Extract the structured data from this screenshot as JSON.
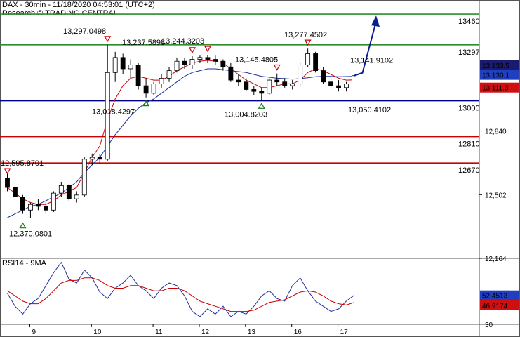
{
  "header": {
    "line1": "DAX - 30min - 11/18/2020 04:53:01 (UTC+2)",
    "line2": "Research © TRADING CENTRAL"
  },
  "colors": {
    "green_level": "#2e8b2e",
    "blue_level": "#00008b",
    "red_level": "#cc0000",
    "ma_fast": "#cc0000",
    "ma_slow": "#1f2fa0",
    "arrow": "#0a1f8f",
    "price_badge": "#1a1a6e",
    "ma_badge_blue": "#1f3fbf",
    "ma_badge_red": "#d01010"
  },
  "chart_data": [
    {
      "type": "candlestick",
      "title": "DAX - 30min - 11/18/2020 04:53:01 (UTC+2)",
      "ylim": [
        12164,
        13520
      ],
      "y_ticks": [
        "12,164",
        "12,502",
        "12,840"
      ],
      "x_ticks": [
        "9",
        "10",
        "11",
        "12",
        "13",
        "16",
        "17"
      ],
      "levels": [
        {
          "value": 13460,
          "label": "13460",
          "color": "green"
        },
        {
          "value": 13297,
          "label": "13297",
          "color": "green"
        },
        {
          "value": 13000,
          "label": "13000",
          "color": "blue"
        },
        {
          "value": 12810,
          "label": "12810",
          "color": "red"
        },
        {
          "value": 12670,
          "label": "12670",
          "color": "red"
        }
      ],
      "price_badges": [
        {
          "value": 13133.5,
          "label": "13,133.5",
          "kind": "price"
        },
        {
          "value": 13130.1,
          "label": "13,130.1",
          "kind": "ma_slow"
        },
        {
          "value": 13111.3,
          "label": "13,111.3",
          "kind": "ma_fast"
        }
      ],
      "annotations": [
        {
          "label": "12,595.8701",
          "value": 12595.8701,
          "marker": "down"
        },
        {
          "label": "12,370.0801",
          "value": 12370.0801,
          "marker": "up"
        },
        {
          "label": "13,297.0498",
          "value": 13297.0498,
          "marker": "down"
        },
        {
          "label": "13,018.4297",
          "value": 13018.4297,
          "marker": "up"
        },
        {
          "label": "13,237.5898",
          "value": 13237.5898,
          "marker": "down"
        },
        {
          "label": "13,244.3203",
          "value": 13244.3203,
          "marker": "down"
        },
        {
          "label": "13,004.8203",
          "value": 13004.8203,
          "marker": "up"
        },
        {
          "label": "13,145.4805",
          "value": 13145.4805,
          "marker": "down"
        },
        {
          "label": "13,277.4502",
          "value": 13277.4502,
          "marker": "down"
        },
        {
          "label": "13,141.9102",
          "value": 13141.9102,
          "marker": "none"
        },
        {
          "label": "13,050.4102",
          "value": 13050.4102,
          "marker": "none"
        }
      ],
      "forecast_arrow_target": 13460,
      "candles_ohlc": [
        [
          12590,
          12620,
          12520,
          12540
        ],
        [
          12540,
          12560,
          12470,
          12490
        ],
        [
          12490,
          12500,
          12400,
          12420
        ],
        [
          12420,
          12460,
          12380,
          12450
        ],
        [
          12450,
          12480,
          12420,
          12440
        ],
        [
          12440,
          12470,
          12400,
          12420
        ],
        [
          12420,
          12520,
          12410,
          12510
        ],
        [
          12510,
          12570,
          12490,
          12550
        ],
        [
          12550,
          12560,
          12470,
          12480
        ],
        [
          12480,
          12520,
          12460,
          12500
        ],
        [
          12500,
          12700,
          12490,
          12690
        ],
        [
          12690,
          12720,
          12660,
          12700
        ],
        [
          12700,
          12720,
          12670,
          12690
        ],
        [
          12690,
          13297,
          12680,
          13150
        ],
        [
          13150,
          13260,
          13100,
          13230
        ],
        [
          13230,
          13250,
          13140,
          13170
        ],
        [
          13170,
          13220,
          13120,
          13190
        ],
        [
          13190,
          13200,
          13060,
          13080
        ],
        [
          13080,
          13120,
          13018,
          13040
        ],
        [
          13040,
          13100,
          13030,
          13090
        ],
        [
          13090,
          13140,
          13070,
          13120
        ],
        [
          13120,
          13180,
          13100,
          13160
        ],
        [
          13160,
          13230,
          13150,
          13210
        ],
        [
          13210,
          13230,
          13170,
          13190
        ],
        [
          13190,
          13237,
          13170,
          13220
        ],
        [
          13220,
          13240,
          13200,
          13230
        ],
        [
          13230,
          13244,
          13200,
          13220
        ],
        [
          13220,
          13240,
          13190,
          13210
        ],
        [
          13210,
          13220,
          13160,
          13180
        ],
        [
          13180,
          13200,
          13100,
          13110
        ],
        [
          13110,
          13140,
          13080,
          13100
        ],
        [
          13100,
          13120,
          13050,
          13060
        ],
        [
          13060,
          13080,
          13030,
          13050
        ],
        [
          13050,
          13070,
          13004,
          13040
        ],
        [
          13040,
          13120,
          13030,
          13110
        ],
        [
          13110,
          13145,
          13080,
          13100
        ],
        [
          13100,
          13120,
          13070,
          13080
        ],
        [
          13080,
          13110,
          13060,
          13090
        ],
        [
          13090,
          13200,
          13080,
          13190
        ],
        [
          13190,
          13277,
          13180,
          13250
        ],
        [
          13250,
          13260,
          13150,
          13160
        ],
        [
          13160,
          13180,
          13090,
          13100
        ],
        [
          13100,
          13120,
          13060,
          13080
        ],
        [
          13080,
          13110,
          13050,
          13070
        ],
        [
          13070,
          13100,
          13050,
          13090
        ],
        [
          13090,
          13142,
          13080,
          13133.5
        ]
      ],
      "ma_fast": [
        12540,
        12510,
        12480,
        12460,
        12450,
        12450,
        12470,
        12500,
        12520,
        12540,
        12620,
        12700,
        12760,
        12900,
        13010,
        13080,
        13120,
        13130,
        13120,
        13110,
        13110,
        13130,
        13160,
        13180,
        13200,
        13210,
        13215,
        13210,
        13200,
        13170,
        13140,
        13110,
        13090,
        13070,
        13070,
        13080,
        13090,
        13090,
        13110,
        13150,
        13170,
        13160,
        13140,
        13120,
        13110,
        13111.3
      ],
      "ma_slow": [
        12380,
        12400,
        12420,
        12440,
        12450,
        12470,
        12490,
        12510,
        12540,
        12570,
        12620,
        12660,
        12700,
        12760,
        12820,
        12870,
        12920,
        12960,
        12990,
        13010,
        13040,
        13070,
        13100,
        13130,
        13150,
        13160,
        13170,
        13170,
        13165,
        13160,
        13155,
        13150,
        13140,
        13130,
        13125,
        13120,
        13118,
        13115,
        13118,
        13122,
        13128,
        13130,
        13130,
        13128,
        13129,
        13130.1
      ]
    },
    {
      "type": "line",
      "title": "RSI14 - 9MA",
      "ylim": [
        30,
        80
      ],
      "y_ticks": [
        "30",
        "52"
      ],
      "badges": [
        {
          "value": 52.4513,
          "label": "52.4513",
          "kind": "rsi"
        },
        {
          "value": 46.9174,
          "label": "46.9174",
          "kind": "ma"
        }
      ],
      "series": [
        {
          "name": "RSI14",
          "values": [
            54,
            44,
            38,
            46,
            50,
            60,
            70,
            78,
            65,
            62,
            72,
            66,
            55,
            50,
            58,
            62,
            68,
            60,
            56,
            50,
            58,
            62,
            60,
            52,
            40,
            36,
            42,
            38,
            44,
            36,
            40,
            38,
            44,
            52,
            56,
            50,
            48,
            60,
            66,
            56,
            48,
            44,
            40,
            42,
            48,
            52.4513
          ]
        },
        {
          "name": "9MA",
          "values": [
            56,
            52,
            48,
            46,
            46,
            50,
            56,
            62,
            64,
            64,
            66,
            66,
            64,
            60,
            58,
            58,
            60,
            60,
            58,
            56,
            56,
            58,
            58,
            56,
            52,
            48,
            46,
            44,
            42,
            40,
            40,
            40,
            41,
            44,
            47,
            48,
            49,
            52,
            55,
            56,
            55,
            52,
            48,
            46,
            45,
            46.9174
          ]
        }
      ]
    }
  ]
}
